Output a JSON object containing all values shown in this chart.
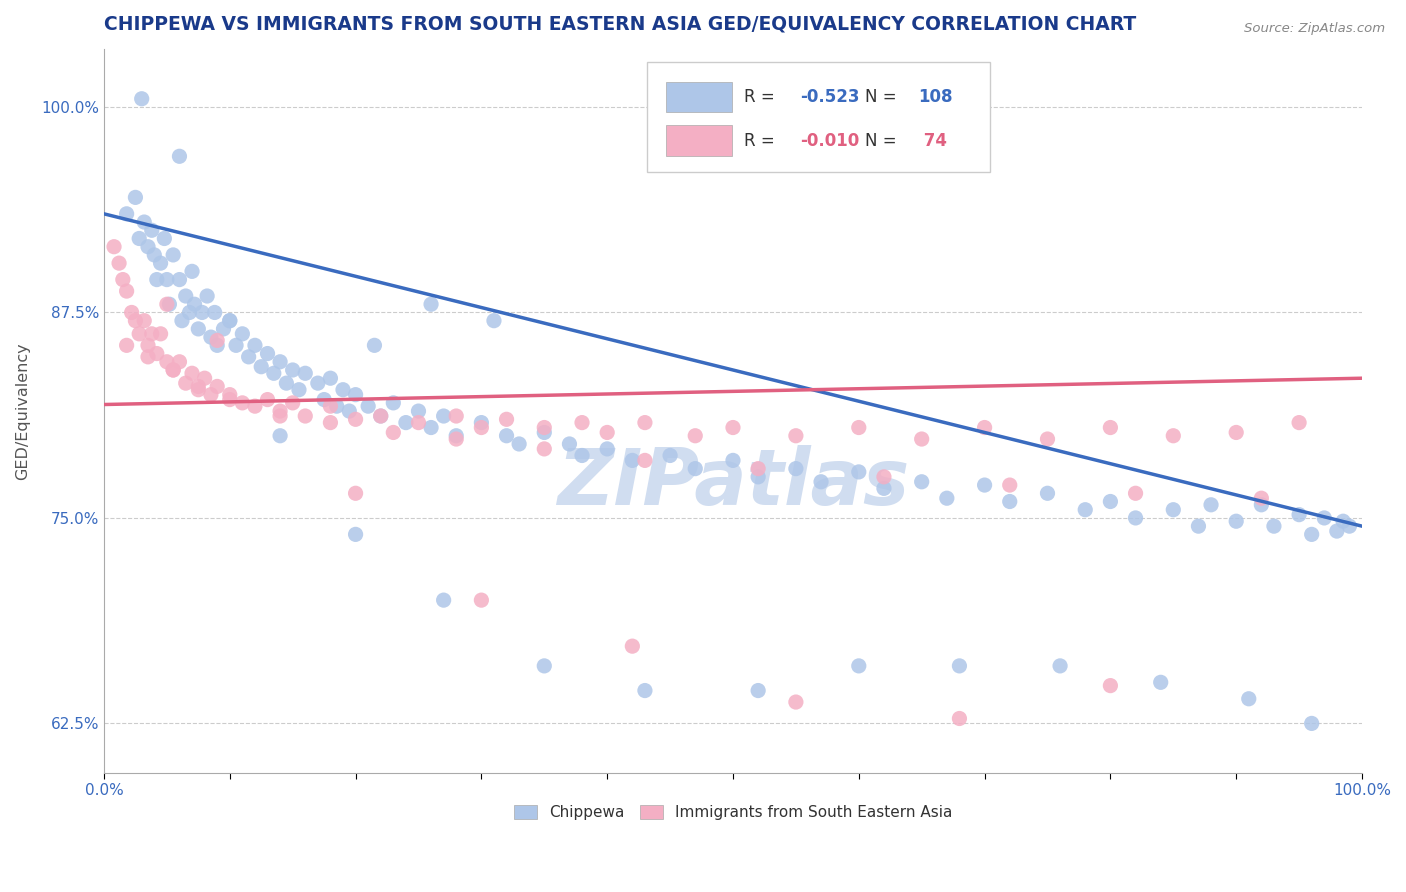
{
  "title": "CHIPPEWA VS IMMIGRANTS FROM SOUTH EASTERN ASIA GED/EQUIVALENCY CORRELATION CHART",
  "source_text": "Source: ZipAtlas.com",
  "ylabel": "GED/Equivalency",
  "xlim": [
    0.0,
    1.0
  ],
  "ylim": [
    0.595,
    1.035
  ],
  "ytick_labels": [
    "62.5%",
    "75.0%",
    "87.5%",
    "100.0%"
  ],
  "ytick_values": [
    0.625,
    0.75,
    0.875,
    1.0
  ],
  "chippewa_color": "#aec6e8",
  "immigrant_color": "#f4afc4",
  "line_color_chippewa": "#3a6bbf",
  "line_color_immigrant": "#e06080",
  "watermark_text": "ZIPatlas",
  "watermark_color": "#d0ddf0",
  "chippewa_line_x0": 0.0,
  "chippewa_line_y0": 0.935,
  "chippewa_line_x1": 1.0,
  "chippewa_line_y1": 0.745,
  "immigrant_line_x0": 0.0,
  "immigrant_line_y0": 0.819,
  "immigrant_line_x1": 1.0,
  "immigrant_line_y1": 0.835,
  "grid_color": "#cccccc",
  "title_color": "#1a3a8a",
  "axis_label_color": "#555555",
  "tick_label_color": "#3a6bbf",
  "legend_r1": "R = ",
  "legend_v1": "-0.523",
  "legend_n1": "N = ",
  "legend_nv1": "108",
  "legend_r2": "R = ",
  "legend_v2": "-0.010",
  "legend_n2": "N = ",
  "legend_nv2": " 74",
  "chippewa_x": [
    0.018,
    0.025,
    0.028,
    0.032,
    0.035,
    0.038,
    0.04,
    0.042,
    0.045,
    0.048,
    0.05,
    0.052,
    0.055,
    0.06,
    0.062,
    0.065,
    0.068,
    0.07,
    0.072,
    0.075,
    0.078,
    0.082,
    0.085,
    0.088,
    0.09,
    0.095,
    0.1,
    0.105,
    0.11,
    0.115,
    0.12,
    0.125,
    0.13,
    0.135,
    0.14,
    0.145,
    0.15,
    0.155,
    0.16,
    0.17,
    0.175,
    0.18,
    0.185,
    0.19,
    0.195,
    0.2,
    0.21,
    0.22,
    0.23,
    0.24,
    0.25,
    0.26,
    0.27,
    0.28,
    0.3,
    0.32,
    0.33,
    0.35,
    0.37,
    0.38,
    0.4,
    0.42,
    0.45,
    0.47,
    0.5,
    0.52,
    0.55,
    0.57,
    0.6,
    0.62,
    0.65,
    0.67,
    0.7,
    0.72,
    0.75,
    0.78,
    0.8,
    0.82,
    0.85,
    0.87,
    0.88,
    0.9,
    0.92,
    0.93,
    0.95,
    0.96,
    0.97,
    0.98,
    0.985,
    0.99,
    0.03,
    0.06,
    0.1,
    0.14,
    0.2,
    0.27,
    0.35,
    0.43,
    0.52,
    0.6,
    0.68,
    0.76,
    0.84,
    0.91,
    0.96,
    0.215,
    0.26,
    0.31
  ],
  "chippewa_y": [
    0.935,
    0.945,
    0.92,
    0.93,
    0.915,
    0.925,
    0.91,
    0.895,
    0.905,
    0.92,
    0.895,
    0.88,
    0.91,
    0.895,
    0.87,
    0.885,
    0.875,
    0.9,
    0.88,
    0.865,
    0.875,
    0.885,
    0.86,
    0.875,
    0.855,
    0.865,
    0.87,
    0.855,
    0.862,
    0.848,
    0.855,
    0.842,
    0.85,
    0.838,
    0.845,
    0.832,
    0.84,
    0.828,
    0.838,
    0.832,
    0.822,
    0.835,
    0.818,
    0.828,
    0.815,
    0.825,
    0.818,
    0.812,
    0.82,
    0.808,
    0.815,
    0.805,
    0.812,
    0.8,
    0.808,
    0.8,
    0.795,
    0.802,
    0.795,
    0.788,
    0.792,
    0.785,
    0.788,
    0.78,
    0.785,
    0.775,
    0.78,
    0.772,
    0.778,
    0.768,
    0.772,
    0.762,
    0.77,
    0.76,
    0.765,
    0.755,
    0.76,
    0.75,
    0.755,
    0.745,
    0.758,
    0.748,
    0.758,
    0.745,
    0.752,
    0.74,
    0.75,
    0.742,
    0.748,
    0.745,
    1.005,
    0.97,
    0.87,
    0.8,
    0.74,
    0.7,
    0.66,
    0.645,
    0.645,
    0.66,
    0.66,
    0.66,
    0.65,
    0.64,
    0.625,
    0.855,
    0.88,
    0.87
  ],
  "immigrant_x": [
    0.008,
    0.012,
    0.015,
    0.018,
    0.022,
    0.025,
    0.028,
    0.032,
    0.035,
    0.038,
    0.042,
    0.045,
    0.05,
    0.055,
    0.06,
    0.065,
    0.07,
    0.075,
    0.08,
    0.085,
    0.09,
    0.1,
    0.11,
    0.12,
    0.13,
    0.14,
    0.15,
    0.16,
    0.18,
    0.2,
    0.22,
    0.25,
    0.28,
    0.3,
    0.32,
    0.35,
    0.38,
    0.4,
    0.43,
    0.47,
    0.5,
    0.55,
    0.6,
    0.65,
    0.7,
    0.75,
    0.8,
    0.85,
    0.9,
    0.95,
    0.018,
    0.035,
    0.055,
    0.075,
    0.1,
    0.14,
    0.18,
    0.23,
    0.28,
    0.35,
    0.43,
    0.52,
    0.62,
    0.72,
    0.82,
    0.92,
    0.05,
    0.09,
    0.2,
    0.3,
    0.42,
    0.55,
    0.68,
    0.8
  ],
  "immigrant_y": [
    0.915,
    0.905,
    0.895,
    0.888,
    0.875,
    0.87,
    0.862,
    0.87,
    0.855,
    0.862,
    0.85,
    0.862,
    0.845,
    0.84,
    0.845,
    0.832,
    0.838,
    0.828,
    0.835,
    0.825,
    0.83,
    0.825,
    0.82,
    0.818,
    0.822,
    0.815,
    0.82,
    0.812,
    0.818,
    0.81,
    0.812,
    0.808,
    0.812,
    0.805,
    0.81,
    0.805,
    0.808,
    0.802,
    0.808,
    0.8,
    0.805,
    0.8,
    0.805,
    0.798,
    0.805,
    0.798,
    0.805,
    0.8,
    0.802,
    0.808,
    0.855,
    0.848,
    0.84,
    0.83,
    0.822,
    0.812,
    0.808,
    0.802,
    0.798,
    0.792,
    0.785,
    0.78,
    0.775,
    0.77,
    0.765,
    0.762,
    0.88,
    0.858,
    0.765,
    0.7,
    0.672,
    0.638,
    0.628,
    0.648
  ],
  "title_fontsize": 13.5,
  "source_fontsize": 9.5,
  "marker_size": 120,
  "legend_fontsize": 12
}
